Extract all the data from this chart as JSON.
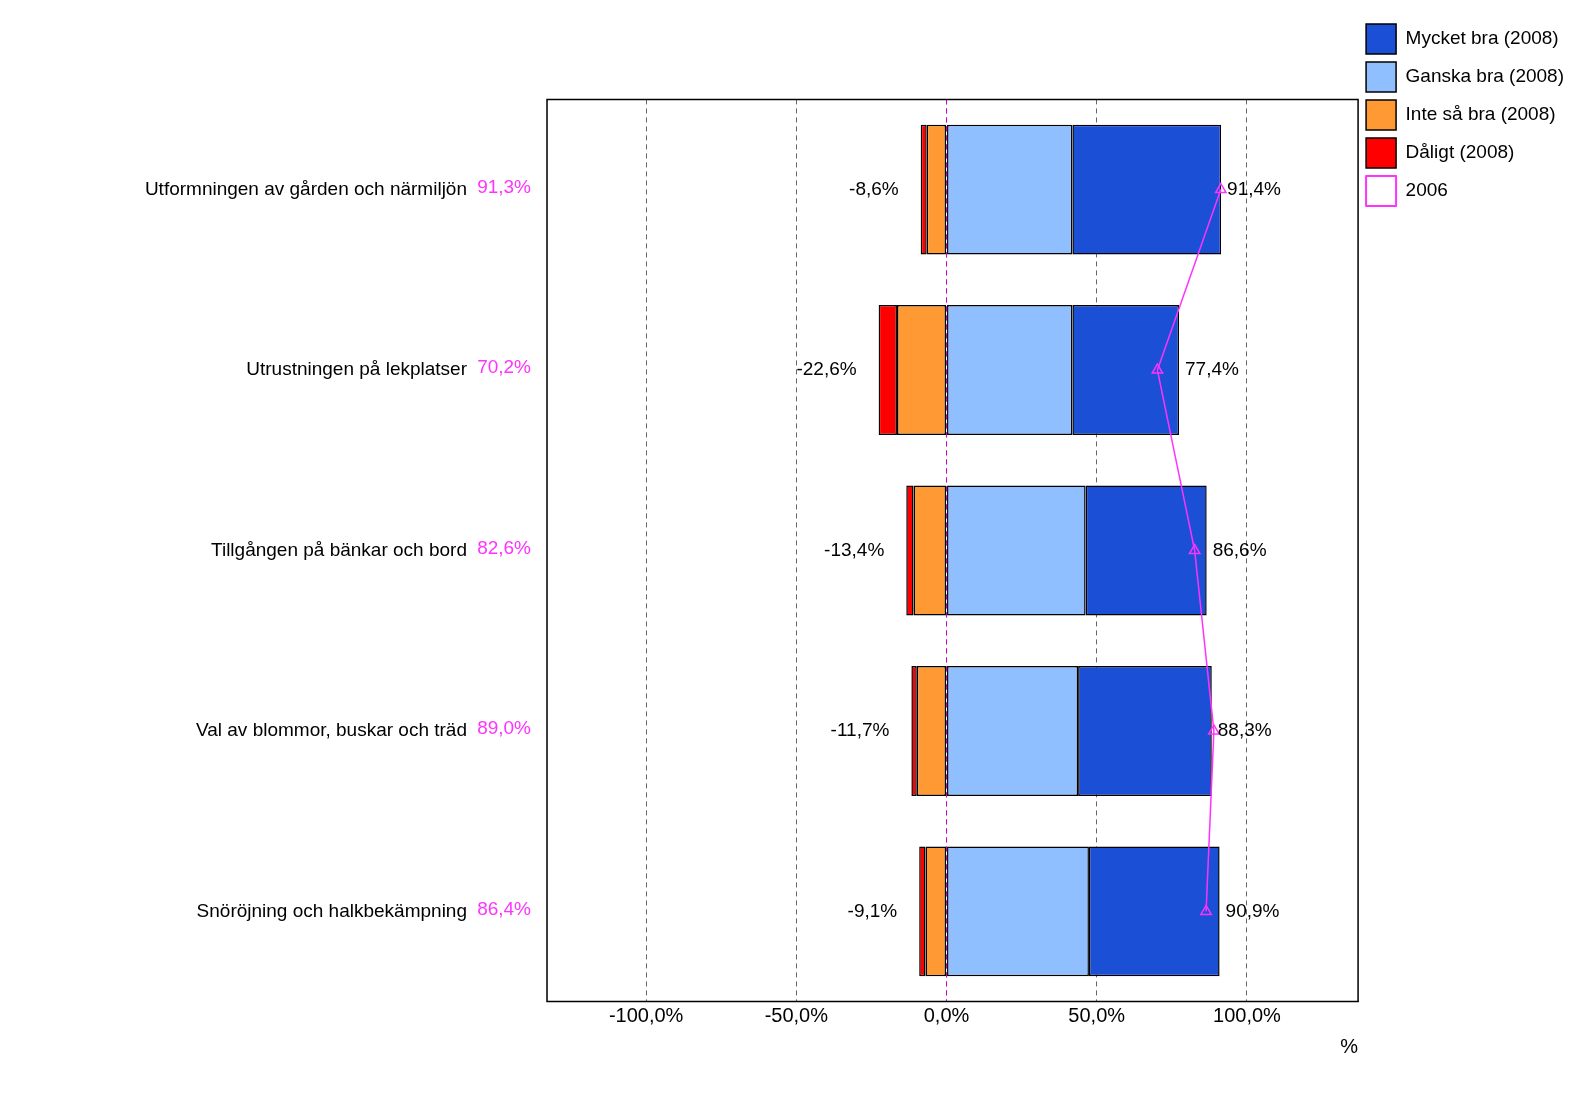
{
  "chart_data": {
    "type": "bar",
    "orientation": "horizontal",
    "stacked": true,
    "categories": [
      "Utformningen av gården och närmiljön",
      "Utrustningen på lekplatser",
      "Tillgången på bänkar och bord",
      "Val av blommor, buskar och träd",
      "Snöröjning och halkbekämpning"
    ],
    "series": [
      {
        "name": "Ganska bra (2008)",
        "color": "#8fbfff",
        "values": [
          41.9,
          41.9,
          46.3,
          43.8,
          47.4
        ]
      },
      {
        "name": "Mycket bra (2008)",
        "color": "#1a4fd6",
        "values": [
          49.5,
          35.5,
          40.3,
          44.5,
          43.5
        ]
      },
      {
        "name": "Inte så bra (2008)",
        "color": "#ff9933",
        "values": [
          -6.6,
          -16.5,
          -11.0,
          -9.9,
          -7.0
        ]
      },
      {
        "name": "Dåligt (2008)",
        "color": "#ff0000",
        "values": [
          -2.0,
          -6.1,
          -2.4,
          -1.8,
          -2.1
        ]
      },
      {
        "name": "2006",
        "type": "line",
        "color": "#ff33ff",
        "marker": "triangle",
        "values": [
          91.3,
          70.2,
          82.6,
          89.0,
          86.4
        ],
        "value_labels": [
          "91,3%",
          "70,2%",
          "82,6%",
          "89,0%",
          "86,4%"
        ]
      }
    ],
    "xlim": [
      -133,
      137
    ],
    "xticks": [
      {
        "value": -100,
        "label": "-100,0%"
      },
      {
        "value": -50,
        "label": "-50,0%"
      },
      {
        "value": 0,
        "label": "0,0%"
      },
      {
        "value": 50,
        "label": "50,0%"
      },
      {
        "value": 100,
        "label": "100,0%"
      }
    ],
    "xlabel": "%",
    "grid": "x",
    "legend": "top right",
    "ref_lines": [
      {
        "axis": "x",
        "value": 0,
        "color": "#cc00cc",
        "line_style": "dashed"
      }
    ],
    "annotations": [
      {
        "text": "-8,6%",
        "x": -8.6,
        "y": "Utformningen av gården och närmiljön"
      },
      {
        "text": "91,4%",
        "x": 91.4,
        "y": "Utformningen av gården och närmiljön"
      },
      {
        "text": "-22,6%",
        "x": -22.6,
        "y": "Utrustningen på lekplatser"
      },
      {
        "text": "77,4%",
        "x": 77.4,
        "y": "Utrustningen på lekplatser"
      },
      {
        "text": "-13,4%",
        "x": -13.4,
        "y": "Tillgången på bänkar och bord"
      },
      {
        "text": "86,6%",
        "x": 86.6,
        "y": "Tillgången på bänkar och bord"
      },
      {
        "text": "-11,7%",
        "x": -11.7,
        "y": "Val av blommor, buskar och träd"
      },
      {
        "text": "88,3%",
        "x": 88.3,
        "y": "Val av blommor, buskar och träd"
      },
      {
        "text": "-9,1%",
        "x": -9.1,
        "y": "Snöröjning och halkbekämpning"
      },
      {
        "text": "90,9%",
        "x": 90.9,
        "y": "Snöröjning och halkbekämpning"
      }
    ]
  }
}
